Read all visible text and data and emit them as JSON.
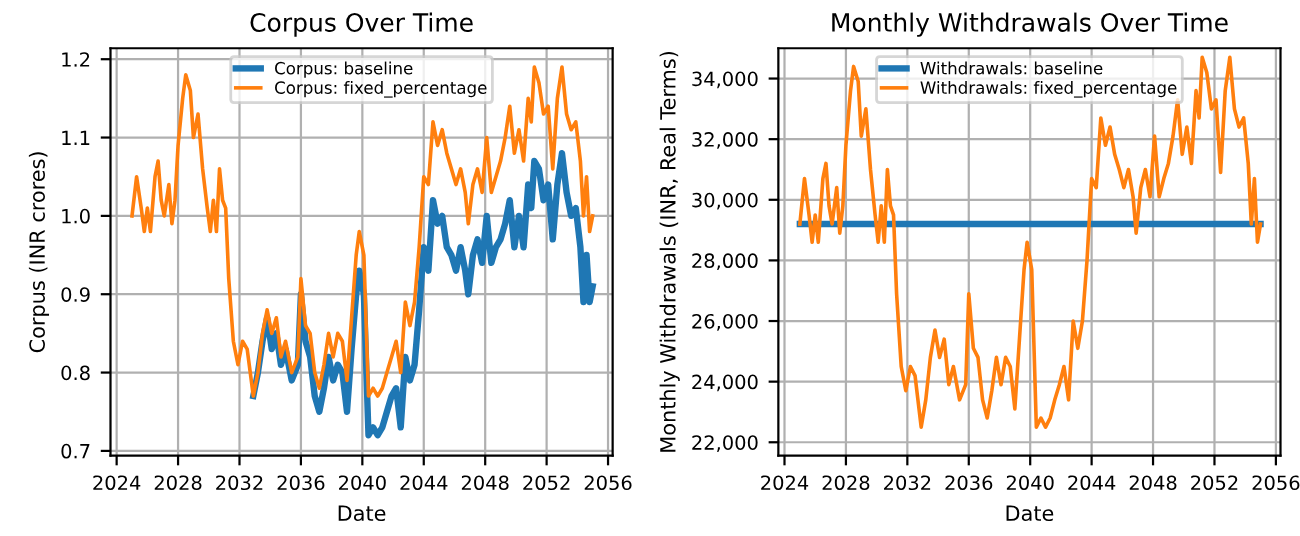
{
  "chart_data": [
    {
      "type": "line",
      "title": "Corpus Over Time",
      "xlabel": "Date",
      "ylabel": "Corpus (INR crores)",
      "x": [
        2025.0,
        2025.3,
        2025.6,
        2025.8,
        2026.0,
        2026.2,
        2026.5,
        2026.7,
        2026.9,
        2027.1,
        2027.4,
        2027.6,
        2027.8,
        2028.0,
        2028.3,
        2028.5,
        2028.8,
        2029.0,
        2029.3,
        2029.6,
        2029.9,
        2030.1,
        2030.3,
        2030.5,
        2030.7,
        2030.9,
        2031.1,
        2031.3,
        2031.6,
        2031.9,
        2032.2,
        2032.5,
        2032.9,
        2033.2,
        2033.5,
        2033.8,
        2034.1,
        2034.4,
        2034.7,
        2035.0,
        2035.4,
        2035.8,
        2036.0,
        2036.3,
        2036.6,
        2036.9,
        2037.2,
        2037.5,
        2037.8,
        2038.1,
        2038.4,
        2038.7,
        2039.0,
        2039.3,
        2039.6,
        2039.8,
        2040.1,
        2040.4,
        2040.7,
        2041.0,
        2041.3,
        2041.6,
        2041.9,
        2042.2,
        2042.5,
        2042.8,
        2043.1,
        2043.4,
        2043.7,
        2044.0,
        2044.3,
        2044.6,
        2044.9,
        2045.2,
        2045.5,
        2045.8,
        2046.1,
        2046.4,
        2046.7,
        2046.9,
        2047.2,
        2047.5,
        2047.8,
        2048.1,
        2048.4,
        2048.7,
        2049.0,
        2049.3,
        2049.6,
        2049.9,
        2050.2,
        2050.5,
        2050.8,
        2051.0,
        2051.2,
        2051.5,
        2051.8,
        2052.1,
        2052.4,
        2052.7,
        2053.0,
        2053.3,
        2053.6,
        2053.9,
        2054.2,
        2054.4,
        2054.6,
        2054.8,
        2055.0
      ],
      "series": [
        {
          "name": "Corpus: baseline",
          "color": "#1f77b4",
          "values": [
            null,
            null,
            null,
            null,
            null,
            null,
            null,
            null,
            null,
            null,
            null,
            null,
            null,
            null,
            null,
            null,
            null,
            null,
            null,
            null,
            null,
            null,
            null,
            null,
            null,
            null,
            null,
            null,
            null,
            null,
            null,
            null,
            0.77,
            0.8,
            0.84,
            0.87,
            0.83,
            0.85,
            0.81,
            0.83,
            0.79,
            0.81,
            0.9,
            0.84,
            0.82,
            0.77,
            0.75,
            0.78,
            0.82,
            0.79,
            0.81,
            0.8,
            0.75,
            0.83,
            0.9,
            0.93,
            0.9,
            0.72,
            0.73,
            0.72,
            0.73,
            0.75,
            0.77,
            0.78,
            0.73,
            0.82,
            0.79,
            0.81,
            0.88,
            0.96,
            0.93,
            1.02,
            0.99,
            1.0,
            0.96,
            0.95,
            0.93,
            0.96,
            0.93,
            0.9,
            0.95,
            0.97,
            0.94,
            1.0,
            0.94,
            0.96,
            0.97,
            0.99,
            1.02,
            0.96,
            1.0,
            0.96,
            1.04,
            1.01,
            1.07,
            1.06,
            1.02,
            1.04,
            0.97,
            1.04,
            1.08,
            1.03,
            1.0,
            1.01,
            0.96,
            0.89,
            0.95,
            0.89,
            0.91
          ]
        },
        {
          "name": "Corpus: fixed_percentage",
          "color": "#ff7f0e",
          "values": [
            1.0,
            1.05,
            1.01,
            0.98,
            1.01,
            0.98,
            1.05,
            1.07,
            1.02,
            1.0,
            1.04,
            0.99,
            1.02,
            1.09,
            1.15,
            1.18,
            1.16,
            1.1,
            1.13,
            1.06,
            1.01,
            0.98,
            1.02,
            0.98,
            1.06,
            1.02,
            1.01,
            0.92,
            0.84,
            0.81,
            0.84,
            0.83,
            0.77,
            0.8,
            0.85,
            0.88,
            0.85,
            0.87,
            0.82,
            0.84,
            0.8,
            0.82,
            0.92,
            0.86,
            0.85,
            0.8,
            0.78,
            0.81,
            0.85,
            0.82,
            0.85,
            0.84,
            0.79,
            0.87,
            0.95,
            0.98,
            0.95,
            0.77,
            0.78,
            0.77,
            0.78,
            0.8,
            0.82,
            0.84,
            0.8,
            0.89,
            0.86,
            0.89,
            0.96,
            1.05,
            1.04,
            1.12,
            1.09,
            1.11,
            1.08,
            1.06,
            1.04,
            1.06,
            1.03,
            0.99,
            1.04,
            1.06,
            1.03,
            1.1,
            1.03,
            1.05,
            1.07,
            1.1,
            1.14,
            1.08,
            1.11,
            1.07,
            1.15,
            1.12,
            1.19,
            1.17,
            1.13,
            1.14,
            1.06,
            1.15,
            1.19,
            1.13,
            1.11,
            1.12,
            1.07,
            1.0,
            1.05,
            0.98,
            1.0
          ]
        }
      ],
      "xlim": [
        2023.6,
        2056.3
      ],
      "xticks": [
        2024,
        2028,
        2032,
        2036,
        2040,
        2044,
        2048,
        2052,
        2056
      ],
      "ylim": [
        0.694,
        1.214
      ],
      "yticks": [
        {
          "value": 0.7,
          "label": "0.7"
        },
        {
          "value": 0.8,
          "label": "0.8"
        },
        {
          "value": 0.9,
          "label": "0.9"
        },
        {
          "value": 1.0,
          "label": "1.0"
        },
        {
          "value": 1.1,
          "label": "1.1"
        },
        {
          "value": 1.2,
          "label": "1.2"
        }
      ],
      "grid": true,
      "legend": "top"
    },
    {
      "type": "line",
      "title": "Monthly Withdrawals Over Time",
      "xlabel": "Date",
      "ylabel": "Monthly Withdrawals (INR, Real Terms)",
      "series": [
        {
          "name": "Withdrawals: baseline",
          "color": "#1f77b4",
          "x": [
            2025.0,
            2055.0
          ],
          "values": [
            29200,
            29200
          ]
        },
        {
          "name": "Withdrawals: fixed_percentage",
          "color": "#ff7f0e",
          "x": [
            2025.0,
            2025.3,
            2025.6,
            2025.8,
            2026.0,
            2026.2,
            2026.5,
            2026.7,
            2026.9,
            2027.1,
            2027.4,
            2027.6,
            2027.8,
            2028.0,
            2028.3,
            2028.5,
            2028.8,
            2029.0,
            2029.3,
            2029.6,
            2029.9,
            2030.1,
            2030.3,
            2030.5,
            2030.7,
            2030.9,
            2031.1,
            2031.3,
            2031.6,
            2031.9,
            2032.2,
            2032.5,
            2032.9,
            2033.2,
            2033.5,
            2033.8,
            2034.1,
            2034.4,
            2034.7,
            2035.0,
            2035.4,
            2035.8,
            2036.0,
            2036.3,
            2036.6,
            2036.9,
            2037.2,
            2037.5,
            2037.8,
            2038.1,
            2038.4,
            2038.7,
            2039.0,
            2039.3,
            2039.6,
            2039.8,
            2040.1,
            2040.4,
            2040.7,
            2041.0,
            2041.3,
            2041.6,
            2041.9,
            2042.2,
            2042.5,
            2042.8,
            2043.1,
            2043.4,
            2043.7,
            2044.0,
            2044.3,
            2044.6,
            2044.9,
            2045.2,
            2045.5,
            2045.8,
            2046.1,
            2046.4,
            2046.7,
            2046.9,
            2047.2,
            2047.5,
            2047.8,
            2048.1,
            2048.4,
            2048.7,
            2049.0,
            2049.3,
            2049.6,
            2049.9,
            2050.2,
            2050.5,
            2050.8,
            2051.0,
            2051.2,
            2051.5,
            2051.8,
            2052.1,
            2052.4,
            2052.7,
            2053.0,
            2053.3,
            2053.6,
            2053.9,
            2054.2,
            2054.4,
            2054.6,
            2054.8,
            2055.0
          ],
          "values": [
            29200,
            30700,
            29500,
            28600,
            29500,
            28600,
            30700,
            31200,
            29800,
            29200,
            30400,
            28900,
            29800,
            31800,
            33600,
            34400,
            33900,
            32100,
            33000,
            31000,
            29500,
            28600,
            29800,
            28600,
            31000,
            29800,
            29500,
            26900,
            24500,
            23700,
            24500,
            24200,
            22500,
            23400,
            24800,
            25700,
            24800,
            25400,
            23900,
            24500,
            23400,
            23900,
            26900,
            25100,
            24800,
            23400,
            22800,
            23700,
            24800,
            23900,
            24800,
            24500,
            23100,
            25400,
            27700,
            28600,
            27700,
            22500,
            22800,
            22500,
            22800,
            23400,
            23900,
            24500,
            23400,
            26000,
            25100,
            26000,
            28000,
            30700,
            30400,
            32700,
            31800,
            32400,
            31500,
            31000,
            30400,
            31000,
            30100,
            28900,
            30400,
            31000,
            30100,
            32100,
            30100,
            30700,
            31200,
            32100,
            33300,
            31500,
            32400,
            31200,
            33600,
            32700,
            34700,
            34200,
            33000,
            33300,
            30900,
            33600,
            34700,
            33000,
            32400,
            32700,
            31200,
            29200,
            30700,
            28600,
            29200
          ]
        }
      ],
      "xlim": [
        2023.6,
        2056.3
      ],
      "xticks": [
        2024,
        2028,
        2032,
        2036,
        2040,
        2044,
        2048,
        2052,
        2056
      ],
      "ylim": [
        21560,
        35000
      ],
      "yticks": [
        {
          "value": 22000,
          "label": "22,000"
        },
        {
          "value": 24000,
          "label": "24,000"
        },
        {
          "value": 26000,
          "label": "26,000"
        },
        {
          "value": 28000,
          "label": "28,000"
        },
        {
          "value": 30000,
          "label": "30,000"
        },
        {
          "value": 32000,
          "label": "32,000"
        },
        {
          "value": 34000,
          "label": "34,000"
        }
      ],
      "grid": true,
      "legend": "top"
    }
  ]
}
